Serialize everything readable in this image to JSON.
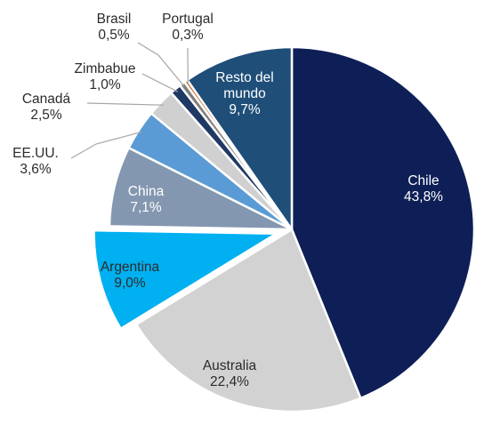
{
  "chart_data": {
    "type": "pie",
    "slices": [
      {
        "label": "Chile",
        "value_label": "43,8%",
        "value": 43.8,
        "color": "#0e1f57",
        "label_color": "#ffffff"
      },
      {
        "label": "Australia",
        "value_label": "22,4%",
        "value": 22.4,
        "color": "#d2d2d2",
        "label_color": "#2b2b2b"
      },
      {
        "label": "Argentina",
        "value_label": "9,0%",
        "value": 9.0,
        "color": "#00b0f0",
        "label_color": "#2b2b2b",
        "exploded": true
      },
      {
        "label": "China",
        "value_label": "7,1%",
        "value": 7.1,
        "color": "#8497b0",
        "label_color": "#ffffff"
      },
      {
        "label": "EE.UU.",
        "value_label": "3,6%",
        "value": 3.6,
        "color": "#5b9bd5",
        "label_color": "#2b2b2b",
        "leader": true
      },
      {
        "label": "Canadá",
        "value_label": "2,5%",
        "value": 2.5,
        "color": "#d0d0d0",
        "label_color": "#2b2b2b",
        "leader": true
      },
      {
        "label": "Zimbabue",
        "value_label": "1,0%",
        "value": 1.0,
        "color": "#1f3864",
        "label_color": "#2b2b2b",
        "leader": true
      },
      {
        "label": "Brasil",
        "value_label": "0,5%",
        "value": 0.5,
        "color": "#7f7f7f",
        "label_color": "#2b2b2b",
        "leader": true
      },
      {
        "label": "Portugal",
        "value_label": "0,3%",
        "value": 0.3,
        "color": "#c55a11",
        "label_color": "#2b2b2b",
        "leader": true
      },
      {
        "label": [
          "Resto del",
          "mundo"
        ],
        "value_label": "9,7%",
        "value": 9.7,
        "color": "#1f4e79",
        "label_color": "#ffffff"
      }
    ],
    "legend": "none",
    "start": "12 o'clock, clockwise"
  }
}
